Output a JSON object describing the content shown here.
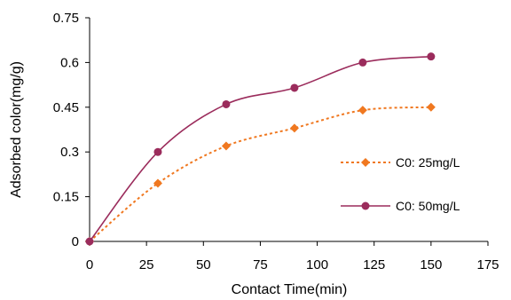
{
  "chart_data": {
    "type": "line",
    "title": "",
    "xlabel": "Contact Time(min)",
    "ylabel": "Adsorbed color(mg/g)",
    "xlim": [
      0,
      175
    ],
    "ylim": [
      0,
      0.75
    ],
    "xticks": [
      0,
      25,
      50,
      75,
      100,
      125,
      150,
      175
    ],
    "yticks": [
      0,
      0.15,
      0.3,
      0.45,
      0.6,
      0.75
    ],
    "xtick_labels": [
      "0",
      "25",
      "50",
      "75",
      "100",
      "125",
      "150",
      "175"
    ],
    "ytick_labels": [
      "0",
      "0.15",
      "0.3",
      "0.45",
      "0.6",
      "0.75"
    ],
    "grid": false,
    "legend_position": "right",
    "series": [
      {
        "name": "C0: 25mg/L",
        "x": [
          0,
          30,
          60,
          90,
          120,
          150
        ],
        "y": [
          0,
          0.195,
          0.32,
          0.38,
          0.44,
          0.45
        ],
        "color": "#F07820",
        "marker": "diamond",
        "line_style": "dotted"
      },
      {
        "name": "C0: 50mg/L",
        "x": [
          0,
          30,
          60,
          90,
          120,
          150
        ],
        "y": [
          0,
          0.3,
          0.46,
          0.515,
          0.6,
          0.62
        ],
        "color": "#9B2C5C",
        "marker": "circle",
        "line_style": "solid"
      }
    ]
  }
}
